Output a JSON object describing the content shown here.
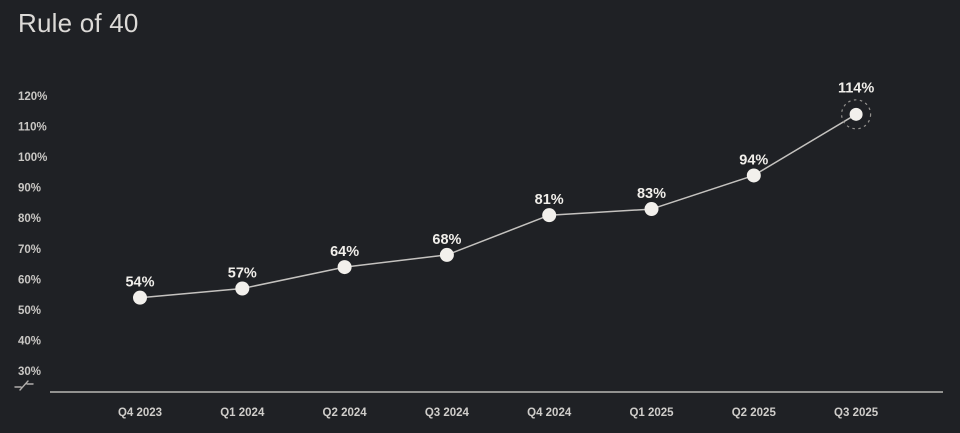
{
  "page": {
    "title": "Rule of 40"
  },
  "colors": {
    "background": "#1f2125",
    "title_text": "#dcdad7",
    "trend_line": "#c4c2bf",
    "point_fill": "#f2f0ec",
    "point_label_text": "#f0eeea",
    "axis_line": "#a3a2a0",
    "y_tick_text": "#c9c7c4",
    "x_tick_text": "#cfcdca",
    "highlight_ring": "#93918e",
    "axis_break": "#b0aeab"
  },
  "chart_data": {
    "type": "line",
    "title": "Rule of 40",
    "categories": [
      "Q4 2023",
      "Q1 2024",
      "Q2 2024",
      "Q3 2024",
      "Q4 2024",
      "Q1 2025",
      "Q2 2025",
      "Q3 2025"
    ],
    "series": [
      {
        "name": "Rule of 40",
        "values": [
          54,
          57,
          64,
          68,
          81,
          83,
          94,
          114
        ]
      }
    ],
    "point_labels": [
      "54%",
      "57%",
      "64%",
      "68%",
      "81%",
      "83%",
      "94%",
      "114%"
    ],
    "y_ticks": [
      120,
      110,
      100,
      90,
      80,
      70,
      60,
      50,
      40,
      30
    ],
    "y_tick_labels": [
      "120%",
      "110%",
      "100%",
      "90%",
      "80%",
      "70%",
      "60%",
      "50%",
      "40%",
      "30%"
    ],
    "xlabel": "",
    "ylabel": "",
    "ylim": [
      30,
      120
    ],
    "grid": false,
    "legend": false,
    "axis_break": true,
    "highlighted_category": "Q3 2025",
    "highlighted_index": 7
  }
}
